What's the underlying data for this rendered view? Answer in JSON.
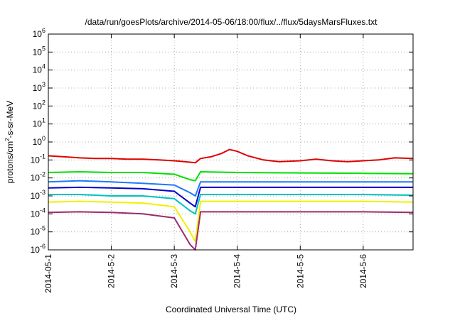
{
  "chart_data": {
    "type": "line",
    "title": "/data/run/goesPlots/archive/2014-05-06/18:00/flux/../flux/5daysMarsFluxes.txt",
    "xlabel": "Coordinated Universal Time (UTC)",
    "ylabel": {
      "base": "protons/cm",
      "sup": "2",
      "rest": "-s-sr-MeV"
    },
    "y_scale": "log",
    "ylim": [
      1e-06,
      1000000.0
    ],
    "y_ticks": [
      {
        "value": 1e-06,
        "base": "10",
        "exp": "-6"
      },
      {
        "value": 1e-05,
        "base": "10",
        "exp": "-5"
      },
      {
        "value": 0.0001,
        "base": "10",
        "exp": "-4"
      },
      {
        "value": 0.001,
        "base": "10",
        "exp": "-3"
      },
      {
        "value": 0.01,
        "base": "10",
        "exp": "-2"
      },
      {
        "value": 0.1,
        "base": "10",
        "exp": "-1"
      },
      {
        "value": 1.0,
        "base": "10",
        "exp": "0"
      },
      {
        "value": 10.0,
        "base": "10",
        "exp": "1"
      },
      {
        "value": 100.0,
        "base": "10",
        "exp": "2"
      },
      {
        "value": 1000.0,
        "base": "10",
        "exp": "3"
      },
      {
        "value": 10000.0,
        "base": "10",
        "exp": "4"
      },
      {
        "value": 100000.0,
        "base": "10",
        "exp": "5"
      },
      {
        "value": 1000000.0,
        "base": "10",
        "exp": "6"
      }
    ],
    "xlim": [
      "2014-05-01",
      "2014-05-06 19:00"
    ],
    "x_ticks": [
      {
        "value": "2014-05-01",
        "label": "2014-05-1"
      },
      {
        "value": "2014-05-02",
        "label": "2014-5-2"
      },
      {
        "value": "2014-05-03",
        "label": "2014-5-3"
      },
      {
        "value": "2014-05-04",
        "label": "2014-5-4"
      },
      {
        "value": "2014-05-05",
        "label": "2014-5-5"
      },
      {
        "value": "2014-05-06",
        "label": "2014-5-6"
      }
    ],
    "grid": true,
    "legend": "none",
    "series": [
      {
        "color": "#e00000",
        "points": [
          [
            "2014-05-01 00:00",
            0.17
          ],
          [
            "2014-05-01 06:00",
            0.15
          ],
          [
            "2014-05-01 12:00",
            0.13
          ],
          [
            "2014-05-01 18:00",
            0.12
          ],
          [
            "2014-05-02 00:00",
            0.12
          ],
          [
            "2014-05-02 06:00",
            0.11
          ],
          [
            "2014-05-02 12:00",
            0.11
          ],
          [
            "2014-05-02 18:00",
            0.1
          ],
          [
            "2014-05-03 00:00",
            0.09
          ],
          [
            "2014-05-03 06:00",
            0.075
          ],
          [
            "2014-05-03 08:00",
            0.07
          ],
          [
            "2014-05-03 10:00",
            0.12
          ],
          [
            "2014-05-03 14:00",
            0.15
          ],
          [
            "2014-05-03 18:00",
            0.23
          ],
          [
            "2014-05-03 21:00",
            0.38
          ],
          [
            "2014-05-04 00:00",
            0.3
          ],
          [
            "2014-05-04 04:00",
            0.17
          ],
          [
            "2014-05-04 10:00",
            0.1
          ],
          [
            "2014-05-04 16:00",
            0.08
          ],
          [
            "2014-05-05 00:00",
            0.09
          ],
          [
            "2014-05-05 06:00",
            0.11
          ],
          [
            "2014-05-05 12:00",
            0.09
          ],
          [
            "2014-05-05 18:00",
            0.08
          ],
          [
            "2014-05-06 00:00",
            0.09
          ],
          [
            "2014-05-06 06:00",
            0.1
          ],
          [
            "2014-05-06 12:00",
            0.13
          ],
          [
            "2014-05-06 19:00",
            0.12
          ]
        ]
      },
      {
        "color": "#00e000",
        "points": [
          [
            "2014-05-01 00:00",
            0.02
          ],
          [
            "2014-05-01 12:00",
            0.022
          ],
          [
            "2014-05-02 00:00",
            0.02
          ],
          [
            "2014-05-02 12:00",
            0.02
          ],
          [
            "2014-05-03 00:00",
            0.016
          ],
          [
            "2014-05-03 06:00",
            0.008
          ],
          [
            "2014-05-03 08:00",
            0.007
          ],
          [
            "2014-05-03 10:00",
            0.022
          ],
          [
            "2014-05-04 00:00",
            0.02
          ],
          [
            "2014-05-05 00:00",
            0.019
          ],
          [
            "2014-05-06 00:00",
            0.018
          ],
          [
            "2014-05-06 19:00",
            0.017
          ]
        ]
      },
      {
        "color": "#1e78ff",
        "points": [
          [
            "2014-05-01 00:00",
            0.006
          ],
          [
            "2014-05-01 12:00",
            0.007
          ],
          [
            "2014-05-02 00:00",
            0.006
          ],
          [
            "2014-05-02 12:00",
            0.005
          ],
          [
            "2014-05-03 00:00",
            0.004
          ],
          [
            "2014-05-03 06:00",
            0.0015
          ],
          [
            "2014-05-03 08:00",
            0.001
          ],
          [
            "2014-05-03 10:00",
            0.006
          ],
          [
            "2014-05-04 00:00",
            0.006
          ],
          [
            "2014-05-05 00:00",
            0.006
          ],
          [
            "2014-05-06 00:00",
            0.006
          ],
          [
            "2014-05-06 19:00",
            0.006
          ]
        ]
      },
      {
        "color": "#0000cc",
        "points": [
          [
            "2014-05-01 00:00",
            0.0028
          ],
          [
            "2014-05-01 12:00",
            0.003
          ],
          [
            "2014-05-02 00:00",
            0.0028
          ],
          [
            "2014-05-02 12:00",
            0.0025
          ],
          [
            "2014-05-03 00:00",
            0.0018
          ],
          [
            "2014-05-03 06:00",
            0.0004
          ],
          [
            "2014-05-03 08:00",
            0.00025
          ],
          [
            "2014-05-03 10:00",
            0.003
          ],
          [
            "2014-05-04 00:00",
            0.003
          ],
          [
            "2014-05-05 00:00",
            0.003
          ],
          [
            "2014-05-06 00:00",
            0.003
          ],
          [
            "2014-05-06 19:00",
            0.003
          ]
        ]
      },
      {
        "color": "#00c0c0",
        "points": [
          [
            "2014-05-01 00:00",
            0.0012
          ],
          [
            "2014-05-01 12:00",
            0.0012
          ],
          [
            "2014-05-02 00:00",
            0.001
          ],
          [
            "2014-05-02 12:00",
            0.001
          ],
          [
            "2014-05-03 00:00",
            0.0007
          ],
          [
            "2014-05-03 06:00",
            0.00015
          ],
          [
            "2014-05-03 08:00",
            0.0001
          ],
          [
            "2014-05-03 10:00",
            0.0012
          ],
          [
            "2014-05-04 00:00",
            0.0012
          ],
          [
            "2014-05-05 00:00",
            0.0012
          ],
          [
            "2014-05-06 00:00",
            0.0012
          ],
          [
            "2014-05-06 19:00",
            0.0011
          ]
        ]
      },
      {
        "color": "#f0f000",
        "points": [
          [
            "2014-05-01 00:00",
            0.00045
          ],
          [
            "2014-05-01 12:00",
            0.0005
          ],
          [
            "2014-05-02 00:00",
            0.00045
          ],
          [
            "2014-05-02 12:00",
            0.0004
          ],
          [
            "2014-05-03 00:00",
            0.00025
          ],
          [
            "2014-05-03 06:00",
            1e-05
          ],
          [
            "2014-05-03 08:00",
            3e-06
          ],
          [
            "2014-05-03 10:00",
            0.0005
          ],
          [
            "2014-05-04 00:00",
            0.0005
          ],
          [
            "2014-05-05 00:00",
            0.0005
          ],
          [
            "2014-05-06 00:00",
            0.0005
          ],
          [
            "2014-05-06 19:00",
            0.00045
          ]
        ]
      },
      {
        "color": "#9b2c6e",
        "points": [
          [
            "2014-05-01 00:00",
            0.00012
          ],
          [
            "2014-05-01 12:00",
            0.00013
          ],
          [
            "2014-05-02 00:00",
            0.00012
          ],
          [
            "2014-05-02 12:00",
            0.0001
          ],
          [
            "2014-05-03 00:00",
            6e-05
          ],
          [
            "2014-05-03 06:00",
            2e-06
          ],
          [
            "2014-05-03 08:00",
            1e-06
          ],
          [
            "2014-05-03 10:00",
            0.00013
          ],
          [
            "2014-05-04 00:00",
            0.00013
          ],
          [
            "2014-05-05 00:00",
            0.00013
          ],
          [
            "2014-05-06 00:00",
            0.00013
          ],
          [
            "2014-05-06 19:00",
            0.00012
          ]
        ]
      }
    ]
  }
}
